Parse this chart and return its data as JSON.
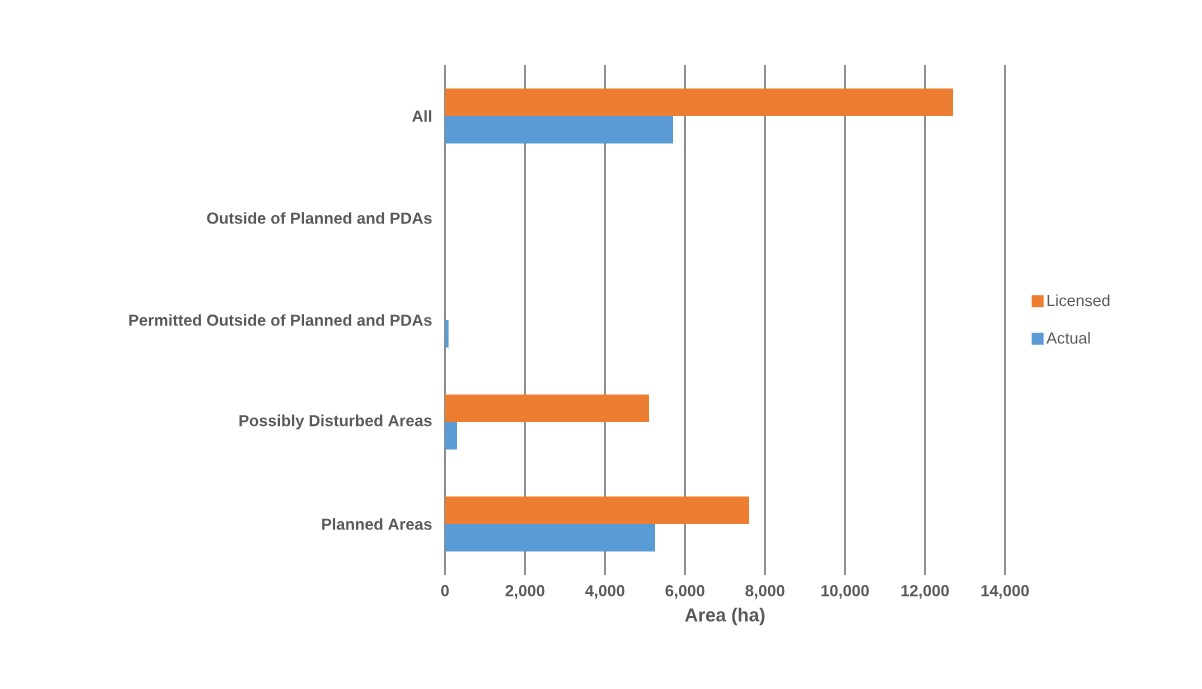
{
  "chart_data": {
    "type": "bar",
    "orientation": "horizontal",
    "categories": [
      "All",
      "Outside of Planned and PDAs",
      "Permitted Outside of Planned and PDAs",
      "Possibly Disturbed Areas",
      "Planned Areas"
    ],
    "series": [
      {
        "name": "Licensed",
        "color": "#ed7d31",
        "values": [
          12700,
          0,
          0,
          5100,
          7600
        ]
      },
      {
        "name": "Actual",
        "color": "#5b9bd5",
        "values": [
          5700,
          0,
          90,
          300,
          5250
        ]
      }
    ],
    "xlabel": "Area (ha)",
    "xlim": [
      0,
      14000
    ],
    "xticks": [
      0,
      {
        "value": 2000,
        "label": "2,000"
      },
      {
        "value": 4000,
        "label": "4,000"
      },
      {
        "value": 6000,
        "label": "6,000"
      },
      {
        "value": 8000,
        "label": "8,000"
      },
      {
        "value": 10000,
        "label": "10,000"
      },
      {
        "value": 12000,
        "label": "12,000"
      },
      {
        "value": 14000,
        "label": "14,000"
      }
    ],
    "grid": "x",
    "legend": "right"
  }
}
